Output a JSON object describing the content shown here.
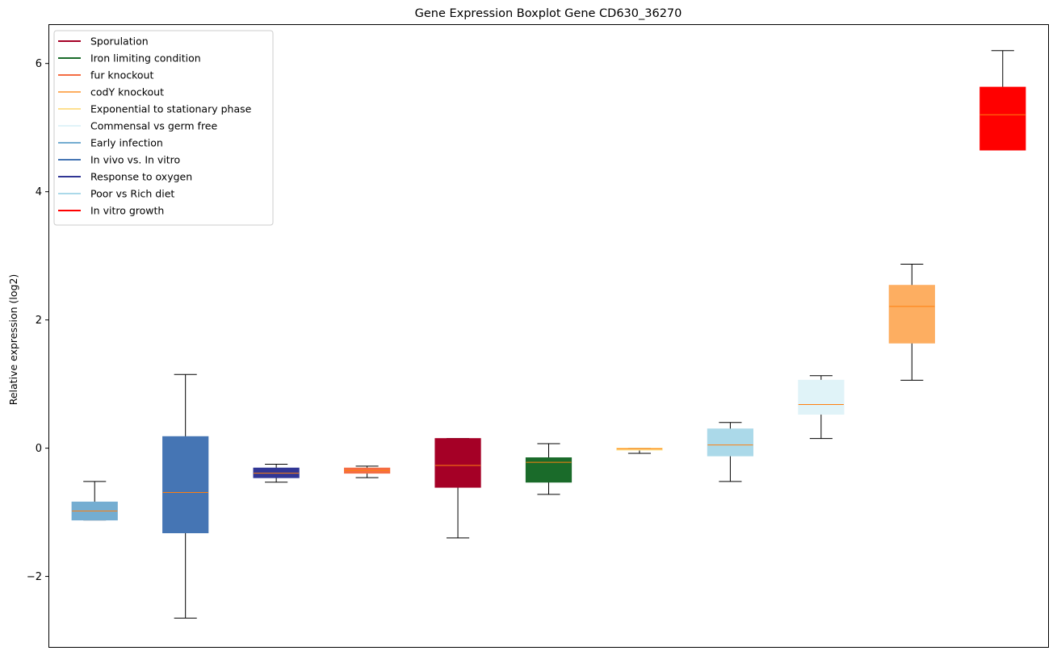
{
  "chart_data": {
    "type": "boxplot",
    "title": "Gene Expression Boxplot Gene CD630_36270",
    "xlabel": "",
    "ylabel": "Relative expression (log2)",
    "ylim": [
      -3.1,
      6.6
    ],
    "yticks": [
      -2,
      0,
      2,
      4,
      6
    ],
    "ytick_labels": [
      "−2",
      "0",
      "2",
      "4",
      "6"
    ],
    "grid": false,
    "legend_position": "upper-left",
    "legend": [
      {
        "name": "Sporulation",
        "color": "#a50026"
      },
      {
        "name": "Iron limiting condition",
        "color": "#1a6b2a"
      },
      {
        "name": "fur knockout",
        "color": "#f46d43"
      },
      {
        "name": "codY knockout",
        "color": "#fdae61"
      },
      {
        "name": "Exponential to stationary phase",
        "color": "#fee090"
      },
      {
        "name": "Commensal vs germ free",
        "color": "#e0f3f8"
      },
      {
        "name": "Early infection",
        "color": "#74add1"
      },
      {
        "name": "In vivo vs. In vitro",
        "color": "#4575b4"
      },
      {
        "name": "Response to oxygen",
        "color": "#313695"
      },
      {
        "name": "Poor vs Rich diet",
        "color": "#abd9e9"
      },
      {
        "name": "In vitro growth",
        "color": "#ff0000"
      }
    ],
    "boxes": [
      {
        "group": "Early infection",
        "color": "#74add1",
        "median_color": "#ff7f0e",
        "whisker_low": -1.12,
        "q1": -1.12,
        "median": -0.98,
        "q3": -0.84,
        "whisker_high": -0.52
      },
      {
        "group": "In vivo vs. In vitro",
        "color": "#4575b4",
        "median_color": "#ff7f0e",
        "whisker_low": -2.65,
        "q1": -1.32,
        "median": -0.69,
        "q3": 0.18,
        "whisker_high": 1.15
      },
      {
        "group": "Response to oxygen",
        "color": "#313695",
        "median_color": "#ff7f0e",
        "whisker_low": -0.53,
        "q1": -0.46,
        "median": -0.39,
        "q3": -0.31,
        "whisker_high": -0.25
      },
      {
        "group": "fur knockout",
        "color": "#f46d43",
        "median_color": "#ff7f0e",
        "whisker_low": -0.46,
        "q1": -0.39,
        "median": -0.35,
        "q3": -0.31,
        "whisker_high": -0.28
      },
      {
        "group": "Sporulation",
        "color": "#a50026",
        "median_color": "#ff7f0e",
        "whisker_low": -1.4,
        "q1": -0.61,
        "median": -0.27,
        "q3": 0.15,
        "whisker_high": 0.15
      },
      {
        "group": "Iron limiting condition",
        "color": "#1a6b2a",
        "median_color": "#ff7f0e",
        "whisker_low": -0.72,
        "q1": -0.53,
        "median": -0.22,
        "q3": -0.15,
        "whisker_high": 0.07
      },
      {
        "group": "Exponential to stationary phase",
        "color": "#fee090",
        "median_color": "#ff7f0e",
        "whisker_low": -0.08,
        "q1": -0.03,
        "median": -0.01,
        "q3": 0.0,
        "whisker_high": 0.0
      },
      {
        "group": "Poor vs Rich diet",
        "color": "#abd9e9",
        "median_color": "#ff7f0e",
        "whisker_low": -0.52,
        "q1": -0.12,
        "median": 0.05,
        "q3": 0.3,
        "whisker_high": 0.4
      },
      {
        "group": "Commensal vs germ free",
        "color": "#e0f3f8",
        "median_color": "#ff7f0e",
        "whisker_low": 0.15,
        "q1": 0.53,
        "median": 0.68,
        "q3": 1.06,
        "whisker_high": 1.13
      },
      {
        "group": "codY knockout",
        "color": "#fdae61",
        "median_color": "#ff7f0e",
        "whisker_low": 1.06,
        "q1": 1.64,
        "median": 2.21,
        "q3": 2.54,
        "whisker_high": 2.87
      },
      {
        "group": "In vitro growth",
        "color": "#ff0000",
        "median_color": "#ff7f0e",
        "whisker_low": 4.65,
        "q1": 4.65,
        "median": 5.2,
        "q3": 5.63,
        "whisker_high": 6.2
      }
    ]
  }
}
